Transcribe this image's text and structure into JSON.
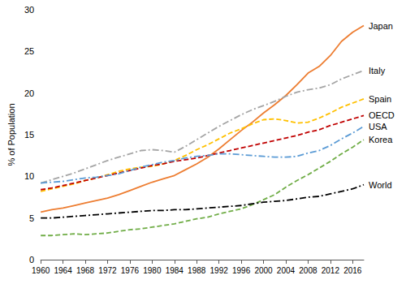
{
  "chart_data": {
    "type": "line",
    "y_label": "% of Population",
    "x": [
      1960,
      1962,
      1964,
      1966,
      1968,
      1970,
      1972,
      1974,
      1976,
      1978,
      1980,
      1982,
      1984,
      1986,
      1988,
      1990,
      1992,
      1994,
      1996,
      1998,
      2000,
      2002,
      2004,
      2006,
      2008,
      2010,
      2012,
      2014,
      2016,
      2018
    ],
    "xlim": [
      1960,
      2018
    ],
    "xticks": [
      1960,
      1964,
      1968,
      1972,
      1976,
      1980,
      1984,
      1988,
      1992,
      1996,
      2000,
      2004,
      2008,
      2012,
      2016
    ],
    "ylim": [
      0,
      30
    ],
    "yticks": [
      0,
      5,
      10,
      15,
      20,
      25,
      30
    ],
    "grid": false,
    "series": [
      {
        "name": "Japan",
        "color": "#ed7d31",
        "line_style": "solid",
        "values": [
          5.7,
          6.0,
          6.2,
          6.5,
          6.8,
          7.1,
          7.4,
          7.8,
          8.3,
          8.8,
          9.3,
          9.7,
          10.1,
          10.8,
          11.5,
          12.3,
          13.3,
          14.4,
          15.5,
          16.5,
          17.6,
          18.6,
          19.7,
          21.0,
          22.4,
          23.2,
          24.5,
          26.2,
          27.3,
          28.1
        ]
      },
      {
        "name": "Italy",
        "color": "#a5a5a5",
        "line_style": "dashdot",
        "values": [
          9.2,
          9.6,
          10.0,
          10.4,
          10.9,
          11.4,
          11.9,
          12.3,
          12.7,
          13.1,
          13.2,
          13.1,
          12.9,
          13.6,
          14.4,
          15.2,
          16.0,
          16.7,
          17.4,
          18.0,
          18.5,
          19.0,
          19.6,
          20.1,
          20.4,
          20.6,
          21.0,
          21.7,
          22.2,
          22.7
        ]
      },
      {
        "name": "Spain",
        "color": "#ffc000",
        "line_style": "dashed",
        "values": [
          8.2,
          8.5,
          8.8,
          9.1,
          9.5,
          9.8,
          10.2,
          10.6,
          10.9,
          11.1,
          11.2,
          11.5,
          11.9,
          12.5,
          13.2,
          13.8,
          14.5,
          15.2,
          15.7,
          16.3,
          16.8,
          16.9,
          16.7,
          16.4,
          16.5,
          17.0,
          17.6,
          18.3,
          18.8,
          19.3
        ]
      },
      {
        "name": "OECD",
        "color": "#c00000",
        "line_style": "dashed",
        "values": [
          8.4,
          8.6,
          8.9,
          9.2,
          9.5,
          9.8,
          10.1,
          10.4,
          10.7,
          11.0,
          11.3,
          11.5,
          11.8,
          12.0,
          12.2,
          12.5,
          12.8,
          13.1,
          13.4,
          13.7,
          14.0,
          14.3,
          14.6,
          14.9,
          15.3,
          15.6,
          16.1,
          16.5,
          16.9,
          17.3
        ]
      },
      {
        "name": "USA",
        "color": "#5b9bd5",
        "line_style": "dashdot",
        "values": [
          9.2,
          9.3,
          9.4,
          9.6,
          9.8,
          9.9,
          10.1,
          10.3,
          10.7,
          11.1,
          11.4,
          11.7,
          11.9,
          12.2,
          12.4,
          12.5,
          12.7,
          12.7,
          12.6,
          12.5,
          12.4,
          12.3,
          12.3,
          12.4,
          12.8,
          13.1,
          13.7,
          14.5,
          15.2,
          16.0
        ]
      },
      {
        "name": "Korea",
        "color": "#70ad47",
        "line_style": "dashed",
        "values": [
          2.9,
          2.9,
          3.0,
          3.1,
          3.0,
          3.1,
          3.2,
          3.4,
          3.6,
          3.7,
          3.9,
          4.1,
          4.3,
          4.6,
          4.9,
          5.1,
          5.5,
          5.8,
          6.1,
          6.6,
          7.2,
          7.8,
          8.7,
          9.5,
          10.2,
          11.0,
          11.8,
          12.7,
          13.5,
          14.4
        ]
      },
      {
        "name": "World",
        "color": "#000000",
        "line_style": "dashdot",
        "values": [
          5.0,
          5.0,
          5.1,
          5.2,
          5.3,
          5.4,
          5.5,
          5.6,
          5.7,
          5.8,
          5.9,
          5.9,
          6.0,
          6.0,
          6.1,
          6.2,
          6.3,
          6.4,
          6.5,
          6.7,
          6.9,
          7.0,
          7.1,
          7.3,
          7.5,
          7.6,
          7.9,
          8.2,
          8.5,
          9.0
        ]
      }
    ]
  }
}
